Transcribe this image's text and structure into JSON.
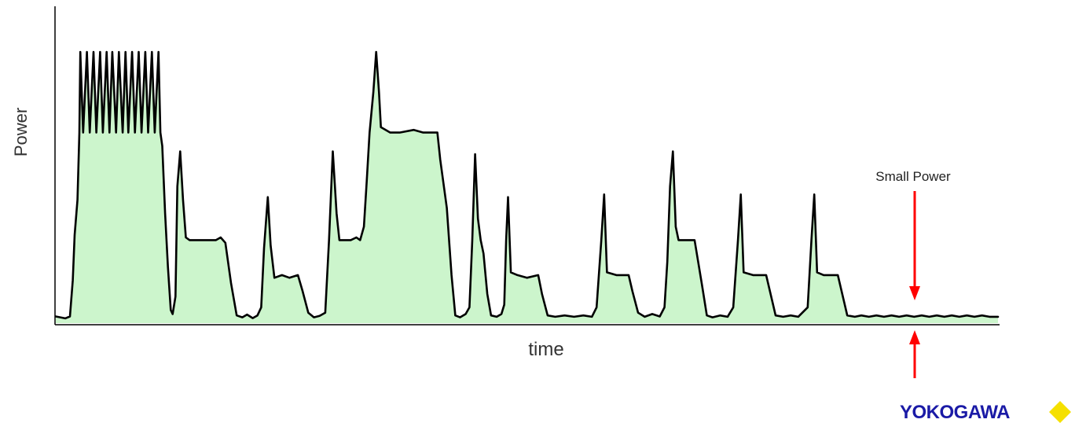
{
  "chart_data": {
    "type": "line",
    "title": "",
    "xlabel": "time",
    "ylabel": "Power",
    "ylim": [
      0,
      100
    ],
    "xlim": [
      0,
      100
    ],
    "grid": false,
    "fill_under": true,
    "series_color": "#000000",
    "fill_color": "#ccf5cc",
    "points": [
      [
        0.0,
        1.6
      ],
      [
        1.0,
        0.9
      ],
      [
        1.5,
        1.6
      ],
      [
        1.8,
        15.0
      ],
      [
        2.0,
        32.0
      ],
      [
        2.3,
        45.0
      ],
      [
        2.5,
        70.0
      ],
      [
        2.6,
        100.0
      ],
      [
        2.9,
        70.0
      ],
      [
        3.3,
        100.0
      ],
      [
        3.6,
        70.0
      ],
      [
        4.0,
        100.0
      ],
      [
        4.3,
        70.0
      ],
      [
        4.7,
        100.0
      ],
      [
        5.0,
        70.0
      ],
      [
        5.4,
        100.0
      ],
      [
        5.7,
        70.0
      ],
      [
        6.0,
        100.0
      ],
      [
        6.4,
        70.0
      ],
      [
        6.7,
        100.0
      ],
      [
        7.1,
        70.0
      ],
      [
        7.4,
        100.0
      ],
      [
        7.7,
        70.0
      ],
      [
        8.1,
        100.0
      ],
      [
        8.4,
        70.0
      ],
      [
        8.8,
        100.0
      ],
      [
        9.1,
        70.0
      ],
      [
        9.5,
        100.0
      ],
      [
        9.8,
        70.0
      ],
      [
        10.2,
        100.0
      ],
      [
        10.5,
        70.0
      ],
      [
        10.9,
        100.0
      ],
      [
        11.1,
        70.0
      ],
      [
        11.3,
        65.0
      ],
      [
        11.6,
        40.0
      ],
      [
        11.9,
        20.0
      ],
      [
        12.2,
        4.0
      ],
      [
        12.4,
        2.5
      ],
      [
        12.7,
        9.0
      ],
      [
        12.9,
        50.0
      ],
      [
        13.2,
        63.0
      ],
      [
        13.5,
        45.0
      ],
      [
        13.8,
        31.0
      ],
      [
        14.2,
        30.0
      ],
      [
        15.5,
        30.0
      ],
      [
        17.0,
        30.0
      ],
      [
        17.5,
        31.0
      ],
      [
        18.0,
        29.0
      ],
      [
        18.6,
        14.0
      ],
      [
        19.2,
        2.0
      ],
      [
        19.8,
        1.3
      ],
      [
        20.3,
        2.3
      ],
      [
        20.9,
        1.0
      ],
      [
        21.4,
        2.0
      ],
      [
        21.8,
        5.0
      ],
      [
        22.1,
        27.0
      ],
      [
        22.5,
        46.0
      ],
      [
        22.8,
        28.0
      ],
      [
        23.2,
        16.0
      ],
      [
        24.0,
        17.0
      ],
      [
        24.8,
        16.0
      ],
      [
        25.7,
        17.0
      ],
      [
        26.2,
        11.0
      ],
      [
        26.8,
        3.0
      ],
      [
        27.4,
        1.3
      ],
      [
        28.0,
        1.8
      ],
      [
        28.6,
        3.0
      ],
      [
        29.0,
        30.0
      ],
      [
        29.4,
        63.0
      ],
      [
        29.8,
        40.0
      ],
      [
        30.1,
        30.0
      ],
      [
        31.3,
        30.0
      ],
      [
        31.9,
        31.0
      ],
      [
        32.3,
        30.0
      ],
      [
        32.7,
        35.0
      ],
      [
        33.0,
        52.0
      ],
      [
        33.3,
        70.0
      ],
      [
        33.7,
        85.0
      ],
      [
        34.0,
        100.0
      ],
      [
        34.3,
        85.0
      ],
      [
        34.5,
        72.0
      ],
      [
        35.5,
        70.0
      ],
      [
        36.5,
        70.0
      ],
      [
        38.0,
        71.0
      ],
      [
        39.0,
        70.0
      ],
      [
        40.5,
        70.0
      ],
      [
        40.8,
        60.0
      ],
      [
        41.5,
        42.0
      ],
      [
        42.0,
        17.0
      ],
      [
        42.4,
        2.0
      ],
      [
        42.9,
        1.3
      ],
      [
        43.5,
        2.5
      ],
      [
        43.9,
        5.0
      ],
      [
        44.2,
        30.0
      ],
      [
        44.5,
        62.0
      ],
      [
        44.8,
        38.0
      ],
      [
        45.1,
        30.0
      ],
      [
        45.4,
        25.0
      ],
      [
        45.8,
        10.0
      ],
      [
        46.2,
        2.0
      ],
      [
        46.8,
        1.5
      ],
      [
        47.3,
        2.5
      ],
      [
        47.6,
        6.0
      ],
      [
        47.8,
        30.0
      ],
      [
        48.0,
        46.0
      ],
      [
        48.3,
        18.0
      ],
      [
        49.0,
        17.0
      ],
      [
        50.0,
        16.0
      ],
      [
        51.2,
        17.0
      ],
      [
        51.6,
        10.0
      ],
      [
        52.2,
        2.0
      ],
      [
        53.0,
        1.5
      ],
      [
        54.0,
        2.0
      ],
      [
        55.0,
        1.5
      ],
      [
        56.0,
        2.0
      ],
      [
        56.9,
        1.5
      ],
      [
        57.4,
        5.0
      ],
      [
        57.9,
        30.0
      ],
      [
        58.2,
        47.0
      ],
      [
        58.5,
        18.0
      ],
      [
        59.5,
        17.0
      ],
      [
        60.8,
        17.0
      ],
      [
        61.2,
        11.0
      ],
      [
        61.8,
        3.0
      ],
      [
        62.5,
        1.5
      ],
      [
        63.3,
        2.5
      ],
      [
        64.1,
        1.6
      ],
      [
        64.6,
        5.0
      ],
      [
        64.9,
        22.0
      ],
      [
        65.2,
        50.0
      ],
      [
        65.5,
        63.0
      ],
      [
        65.8,
        35.0
      ],
      [
        66.1,
        30.0
      ],
      [
        67.8,
        30.0
      ],
      [
        68.6,
        13.0
      ],
      [
        69.1,
        2.0
      ],
      [
        69.7,
        1.3
      ],
      [
        70.5,
        2.0
      ],
      [
        71.3,
        1.5
      ],
      [
        71.9,
        5.0
      ],
      [
        72.4,
        30.0
      ],
      [
        72.7,
        47.0
      ],
      [
        73.0,
        18.0
      ],
      [
        74.0,
        17.0
      ],
      [
        75.4,
        17.0
      ],
      [
        75.8,
        11.0
      ],
      [
        76.4,
        2.0
      ],
      [
        77.2,
        1.5
      ],
      [
        78.0,
        2.0
      ],
      [
        78.8,
        1.5
      ],
      [
        79.8,
        5.0
      ],
      [
        80.2,
        30.0
      ],
      [
        80.5,
        47.0
      ],
      [
        80.8,
        18.0
      ],
      [
        81.5,
        17.0
      ],
      [
        83.0,
        17.0
      ],
      [
        83.4,
        11.0
      ],
      [
        84.0,
        2.0
      ],
      [
        84.8,
        1.5
      ],
      [
        85.5,
        2.0
      ],
      [
        86.3,
        1.5
      ],
      [
        87.1,
        2.0
      ],
      [
        87.9,
        1.5
      ],
      [
        88.7,
        2.0
      ],
      [
        89.5,
        1.5
      ],
      [
        90.3,
        2.0
      ],
      [
        91.1,
        1.5
      ],
      [
        91.9,
        2.0
      ],
      [
        92.7,
        1.5
      ],
      [
        93.5,
        2.0
      ],
      [
        94.3,
        1.5
      ],
      [
        95.1,
        2.0
      ],
      [
        95.9,
        1.5
      ],
      [
        96.7,
        2.0
      ],
      [
        97.5,
        1.5
      ],
      [
        98.3,
        2.0
      ],
      [
        99.1,
        1.5
      ],
      [
        100.0,
        1.5
      ]
    ],
    "annotation": {
      "text": "Small Power",
      "arrow_color": "#ff0000",
      "x": 85.2
    }
  },
  "logo": {
    "text": "YOKOGAWA",
    "text_color": "#1a1aa6",
    "diamond_color": "#f5e000",
    "name": "yokogawa-logo"
  }
}
